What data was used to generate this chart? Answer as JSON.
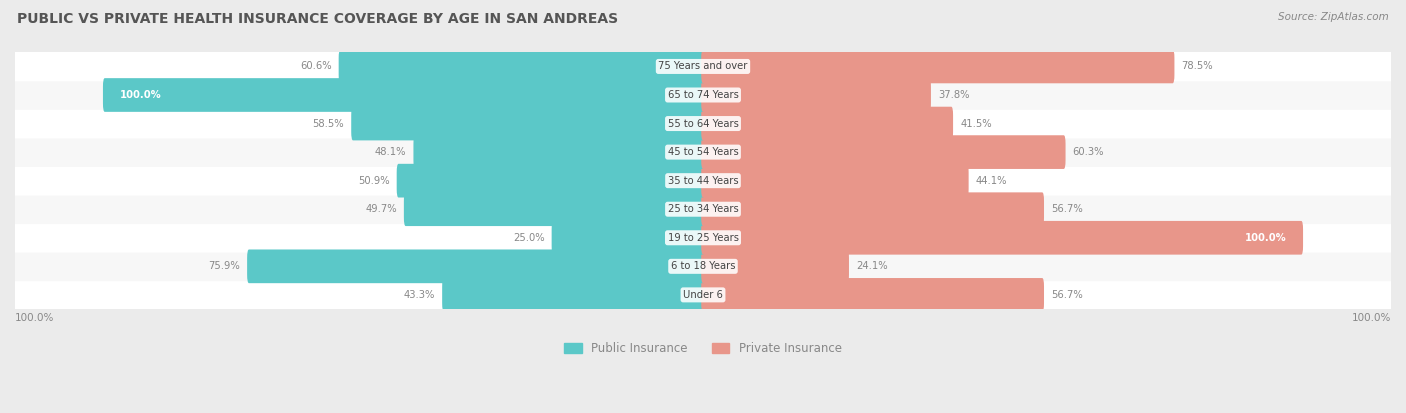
{
  "title": "PUBLIC VS PRIVATE HEALTH INSURANCE COVERAGE BY AGE IN SAN ANDREAS",
  "source": "Source: ZipAtlas.com",
  "categories": [
    "Under 6",
    "6 to 18 Years",
    "19 to 25 Years",
    "25 to 34 Years",
    "35 to 44 Years",
    "45 to 54 Years",
    "55 to 64 Years",
    "65 to 74 Years",
    "75 Years and over"
  ],
  "public_values": [
    43.3,
    75.9,
    25.0,
    49.7,
    50.9,
    48.1,
    58.5,
    100.0,
    60.6
  ],
  "private_values": [
    56.7,
    24.1,
    100.0,
    56.7,
    44.1,
    60.3,
    41.5,
    37.8,
    78.5
  ],
  "public_color": "#5BC8C8",
  "private_color": "#E8968A",
  "bg_color": "#EBEBEB",
  "row_bg_odd": "#F7F7F7",
  "row_bg_even": "#FFFFFF",
  "title_color": "#555555",
  "label_color": "#888888",
  "bar_height": 0.58,
  "legend_public": "Public Insurance",
  "legend_private": "Private Insurance"
}
